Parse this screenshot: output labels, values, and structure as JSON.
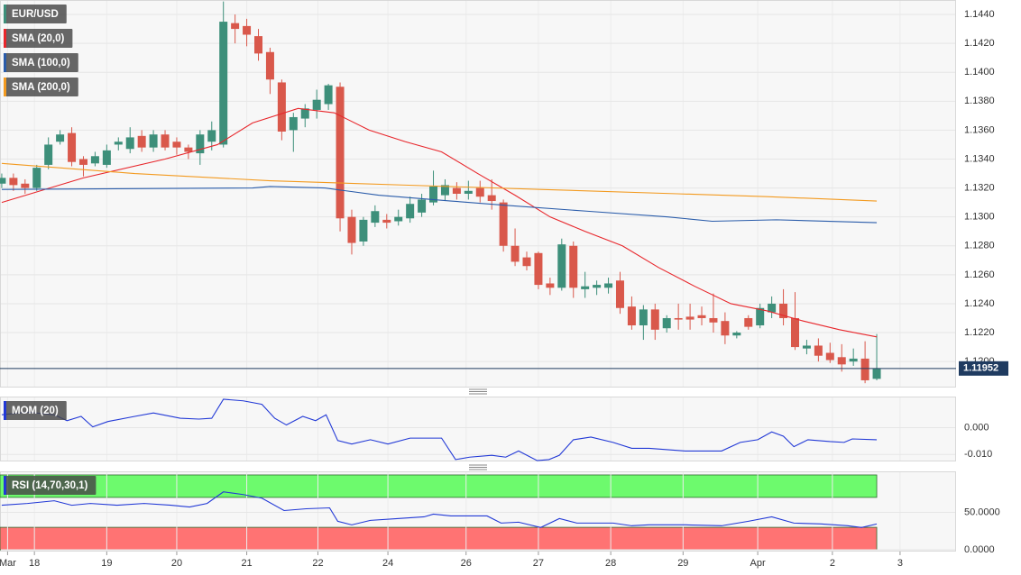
{
  "chart_data": [
    {
      "type": "candlestick",
      "name": "EUR/USD",
      "up_color": "#3d8f7a",
      "down_color": "#d9584b",
      "grid": true,
      "last_price": 1.11952,
      "xlim": [
        -0.15,
        81.8
      ],
      "xticks": [
        {
          "value": 0.5,
          "label": "Mar"
        },
        {
          "value": 2.8,
          "label": "18"
        },
        {
          "value": 9,
          "label": "19"
        },
        {
          "value": 15,
          "label": "20"
        },
        {
          "value": 21,
          "label": "21"
        },
        {
          "value": 27.1,
          "label": "22"
        },
        {
          "value": 33.1,
          "label": "24"
        },
        {
          "value": 39.8,
          "label": "26"
        },
        {
          "value": 46,
          "label": "27"
        },
        {
          "value": 52.2,
          "label": "28"
        },
        {
          "value": 58.4,
          "label": "29"
        },
        {
          "value": 64.8,
          "label": "Apr"
        },
        {
          "value": 71.2,
          "label": "2"
        },
        {
          "value": 77,
          "label": "3"
        }
      ],
      "ylim": [
        1.1182,
        1.145
      ],
      "yticks": [
        {
          "value": 1.12,
          "label": "1.1200"
        },
        {
          "value": 1.122,
          "label": "1.1220"
        },
        {
          "value": 1.124,
          "label": "1.1240"
        },
        {
          "value": 1.126,
          "label": "1.1260"
        },
        {
          "value": 1.128,
          "label": "1.1280"
        },
        {
          "value": 1.13,
          "label": "1.1300"
        },
        {
          "value": 1.132,
          "label": "1.1320"
        },
        {
          "value": 1.134,
          "label": "1.1340"
        },
        {
          "value": 1.136,
          "label": "1.1360"
        },
        {
          "value": 1.138,
          "label": "1.1380"
        },
        {
          "value": 1.14,
          "label": "1.1400"
        },
        {
          "value": 1.142,
          "label": "1.1420"
        },
        {
          "value": 1.144,
          "label": "1.1440"
        }
      ],
      "x": [
        0,
        1,
        2,
        3,
        4,
        5,
        6,
        7,
        8,
        9,
        10,
        11,
        12,
        13,
        14,
        15,
        16,
        17,
        18,
        19,
        20,
        21,
        22,
        23,
        24,
        25,
        26,
        27,
        28,
        29,
        30,
        31,
        32,
        33,
        34,
        35,
        36,
        37,
        38,
        39,
        40,
        41,
        42,
        43,
        44,
        45,
        46,
        47,
        48,
        49,
        50,
        51,
        52,
        53,
        54,
        55,
        56,
        57,
        58,
        59,
        60,
        61,
        62,
        63,
        64,
        65,
        66,
        67,
        68,
        69,
        70,
        71,
        72,
        73,
        74,
        75
      ],
      "open": [
        1.1323,
        1.1327,
        1.1323,
        1.132,
        1.1336,
        1.1352,
        1.1358,
        1.134,
        1.1337,
        1.1336,
        1.135,
        1.1347,
        1.1356,
        1.1348,
        1.1357,
        1.1352,
        1.1348,
        1.1344,
        1.1352,
        1.135,
        1.1434,
        1.1432,
        1.1425,
        1.1414,
        1.1393,
        1.136,
        1.1368,
        1.1374,
        1.1378,
        1.139,
        1.13,
        1.1283,
        1.1296,
        1.1298,
        1.1297,
        1.1299,
        1.1303,
        1.131,
        1.1315,
        1.132,
        1.1316,
        1.132,
        1.1315,
        1.131,
        1.128,
        1.1272,
        1.1275,
        1.1254,
        1.1251,
        1.128,
        1.125,
        1.1251,
        1.1251,
        1.1256,
        1.1238,
        1.1225,
        1.1236,
        1.1223,
        1.123,
        1.1231,
        1.1232,
        1.123,
        1.1228,
        1.1218,
        1.123,
        1.1225,
        1.1234,
        1.124,
        1.123,
        1.1209,
        1.1211,
        1.1206,
        1.1203,
        1.12,
        1.1202,
        1.1188
      ],
      "high": [
        1.133,
        1.133,
        1.1326,
        1.1336,
        1.1355,
        1.136,
        1.1362,
        1.1342,
        1.1345,
        1.135,
        1.1355,
        1.1362,
        1.136,
        1.136,
        1.136,
        1.1355,
        1.135,
        1.136,
        1.1366,
        1.1449,
        1.144,
        1.1437,
        1.143,
        1.1417,
        1.1395,
        1.1372,
        1.1378,
        1.1388,
        1.1392,
        1.1393,
        1.1305,
        1.13,
        1.1308,
        1.1302,
        1.1305,
        1.1314,
        1.1316,
        1.1332,
        1.1326,
        1.1324,
        1.1325,
        1.1325,
        1.1326,
        1.1312,
        1.1292,
        1.1276,
        1.1276,
        1.1258,
        1.1285,
        1.1283,
        1.1262,
        1.1256,
        1.1258,
        1.1262,
        1.1245,
        1.1239,
        1.124,
        1.1232,
        1.124,
        1.124,
        1.1238,
        1.1247,
        1.1234,
        1.1221,
        1.1232,
        1.124,
        1.1245,
        1.125,
        1.1248,
        1.1215,
        1.1216,
        1.1213,
        1.1212,
        1.1209,
        1.1214,
        1.1219
      ],
      "low": [
        1.132,
        1.1318,
        1.1316,
        1.1318,
        1.1333,
        1.135,
        1.1335,
        1.1328,
        1.1335,
        1.1334,
        1.1346,
        1.1344,
        1.1345,
        1.1345,
        1.1346,
        1.1343,
        1.134,
        1.1336,
        1.1346,
        1.1348,
        1.142,
        1.1418,
        1.1408,
        1.1385,
        1.1353,
        1.1345,
        1.1362,
        1.1368,
        1.1374,
        1.129,
        1.1274,
        1.128,
        1.1293,
        1.1292,
        1.1294,
        1.1296,
        1.13,
        1.1308,
        1.1311,
        1.1312,
        1.1312,
        1.131,
        1.1305,
        1.1276,
        1.1266,
        1.1263,
        1.125,
        1.1246,
        1.1249,
        1.1244,
        1.1244,
        1.1246,
        1.1247,
        1.1233,
        1.1222,
        1.1215,
        1.1215,
        1.122,
        1.1222,
        1.1222,
        1.1225,
        1.122,
        1.1212,
        1.1216,
        1.1222,
        1.1223,
        1.123,
        1.1225,
        1.1208,
        1.1205,
        1.12,
        1.1199,
        1.1193,
        1.1197,
        1.1185,
        1.1187
      ],
      "close": [
        1.1327,
        1.1322,
        1.132,
        1.1334,
        1.135,
        1.1357,
        1.1338,
        1.1336,
        1.1342,
        1.1346,
        1.1352,
        1.1355,
        1.1348,
        1.1357,
        1.1348,
        1.1348,
        1.1345,
        1.1357,
        1.136,
        1.1435,
        1.143,
        1.1426,
        1.1413,
        1.1395,
        1.1359,
        1.1369,
        1.1375,
        1.1381,
        1.1391,
        1.1299,
        1.1282,
        1.1298,
        1.1304,
        1.1296,
        1.13,
        1.1309,
        1.1312,
        1.1321,
        1.1322,
        1.1316,
        1.1318,
        1.1314,
        1.1311,
        1.128,
        1.1269,
        1.1266,
        1.1253,
        1.1251,
        1.1281,
        1.1251,
        1.1252,
        1.1253,
        1.1254,
        1.1237,
        1.1225,
        1.1236,
        1.1222,
        1.123,
        1.1229,
        1.1229,
        1.123,
        1.1227,
        1.1218,
        1.122,
        1.1224,
        1.1237,
        1.124,
        1.123,
        1.121,
        1.1211,
        1.1204,
        1.1201,
        1.1198,
        1.1202,
        1.1187,
        1.1195
      ],
      "series": [
        {
          "name": "SMA (20,0)",
          "color": "#e8262b",
          "x": [
            0,
            7,
            14,
            18.5,
            21.5,
            25.4,
            28.5,
            31.5,
            34.6,
            37.7,
            40.8,
            44,
            47,
            50,
            53.2,
            56.3,
            59.4,
            62.5,
            65.6,
            68.7,
            71.8,
            75
          ],
          "values": [
            1.131,
            1.1327,
            1.134,
            1.135,
            1.1365,
            1.1375,
            1.1372,
            1.136,
            1.1352,
            1.1345,
            1.133,
            1.1315,
            1.13,
            1.129,
            1.128,
            1.1265,
            1.1252,
            1.124,
            1.1235,
            1.1228,
            1.1222,
            1.1217
          ]
        },
        {
          "name": "SMA (100,0)",
          "color": "#2a5caa",
          "x": [
            0,
            21.5,
            23,
            27.7,
            32.3,
            38.5,
            43.2,
            50.1,
            57.1,
            60.9,
            66.4,
            75
          ],
          "values": [
            1.1319,
            1.132,
            1.1321,
            1.132,
            1.1315,
            1.1311,
            1.1308,
            1.1304,
            1.13,
            1.1297,
            1.1298,
            1.1296
          ]
        },
        {
          "name": "SMA (200,0)",
          "color": "#f39a1f",
          "x": [
            0,
            11.4,
            23,
            34.6,
            46.2,
            57.9,
            65.6,
            75
          ],
          "values": [
            1.1337,
            1.133,
            1.1325,
            1.1322,
            1.1319,
            1.1316,
            1.1314,
            1.1311
          ]
        }
      ]
    },
    {
      "type": "line",
      "grid": true,
      "xlim": [
        -0.15,
        81.8
      ],
      "ylim": [
        -0.0126,
        0.0116
      ],
      "yticks": [
        {
          "value": 0,
          "label": "0.000"
        },
        {
          "value": -0.01,
          "label": "-0.010"
        }
      ],
      "series": [
        {
          "name": "MOM (20)",
          "color": "#2138d6",
          "x": [
            0,
            2.2,
            4.5,
            5.6,
            6.8,
            7.8,
            9.1,
            11.4,
            13,
            15.3,
            16.9,
            18,
            19,
            20.7,
            22.3,
            23.4,
            24.4,
            25.8,
            26.9,
            27.8,
            28.8,
            30,
            31.6,
            33.1,
            35,
            37.7,
            38.9,
            40.1,
            42,
            43.2,
            44.3,
            45.9,
            46.9,
            47.8,
            49,
            50.5,
            52.4,
            54,
            55.5,
            58.6,
            61.7,
            63.3,
            64.8,
            66,
            67,
            67.9,
            69.1,
            71,
            72.2,
            72.9,
            75
          ],
          "values": [
            0.0048,
            0.0058,
            0.0048,
            0.0026,
            0.0042,
            0.0003,
            0.0023,
            0.0042,
            0.0055,
            0.0035,
            0.0032,
            0.0035,
            0.0106,
            0.01,
            0.0087,
            0.0035,
            0.001,
            0.0042,
            0.0026,
            0.0048,
            -0.0048,
            -0.0061,
            -0.0045,
            -0.0061,
            -0.0039,
            -0.0039,
            -0.0119,
            -0.011,
            -0.0103,
            -0.011,
            -0.0087,
            -0.0123,
            -0.0119,
            -0.0103,
            -0.0045,
            -0.0035,
            -0.0055,
            -0.0077,
            -0.0077,
            -0.0087,
            -0.0087,
            -0.0055,
            -0.0045,
            -0.0016,
            -0.0032,
            -0.0071,
            -0.0045,
            -0.0052,
            -0.0055,
            -0.0042,
            -0.0045
          ]
        }
      ]
    },
    {
      "type": "line",
      "grid": true,
      "xlim": [
        -0.15,
        81.8
      ],
      "ylim": [
        -2.4,
        104.8
      ],
      "yticks": [
        {
          "value": 50,
          "label": "50.0000"
        },
        {
          "value": 0,
          "label": "0.0000"
        }
      ],
      "bands": [
        {
          "range": [
            70,
            100
          ],
          "color": "#6dfa6d"
        },
        {
          "range": [
            0,
            30
          ],
          "color": "#ff7373"
        }
      ],
      "series": [
        {
          "name": "RSI (14,70,30,1)",
          "color": "#2138d6",
          "x": [
            0,
            2.2,
            4.5,
            6,
            7.6,
            9.9,
            12.2,
            14.5,
            16.1,
            17.6,
            19,
            20.7,
            22.3,
            24.2,
            26.1,
            28.1,
            28.8,
            30,
            31.6,
            33.9,
            36.2,
            37,
            38.5,
            41.6,
            42.8,
            44.3,
            46.2,
            47.8,
            49.3,
            52.4,
            54,
            55.5,
            58.6,
            61.7,
            64,
            66,
            67.9,
            70.2,
            72.5,
            73.7,
            75
          ],
          "values": [
            59.5,
            61.9,
            65.5,
            59.5,
            61.9,
            59.5,
            61.9,
            59.5,
            57.1,
            61.9,
            77.4,
            73.8,
            69.0,
            52.4,
            54.8,
            56.0,
            38.1,
            33.3,
            39.3,
            41.7,
            44.0,
            47.6,
            45.2,
            45.2,
            35.7,
            36.9,
            29.8,
            41.7,
            35.7,
            35.7,
            32.1,
            33.3,
            33.3,
            32.1,
            38.1,
            44.0,
            35.7,
            34.5,
            32.1,
            29.8,
            34.5
          ]
        }
      ]
    }
  ]
}
